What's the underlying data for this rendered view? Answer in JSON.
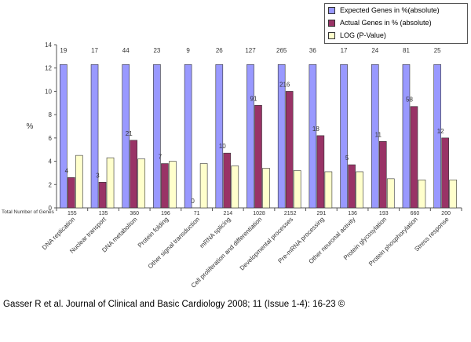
{
  "chart_data": {
    "type": "bar",
    "categories": [
      "DNA replication",
      "Nuclear transport",
      "DNA metabolism",
      "Protein folding",
      "Other signal transduction",
      "mRNA splicing",
      "Cell proliferation and differentiation",
      "Developmental processes",
      "Pre-mRNA processing",
      "Other neuronal activity",
      "Protein glycosylation",
      "Protein phosphorylation",
      "Stress response"
    ],
    "series": [
      {
        "name": "Expected Genes in %(absolute)",
        "color": "#9999ff",
        "values": [
          12.3,
          12.3,
          12.3,
          12.3,
          12.3,
          12.3,
          12.3,
          12.3,
          12.3,
          12.3,
          12.3,
          12.3,
          12.3
        ],
        "labels": [
          "19",
          "17",
          "44",
          "23",
          "9",
          "26",
          "127",
          "265",
          "36",
          "17",
          "24",
          "81",
          "25"
        ]
      },
      {
        "name": "Actual Genes in % (absolute)",
        "color": "#993366",
        "values": [
          2.6,
          2.2,
          5.8,
          3.8,
          0,
          4.7,
          8.8,
          10.0,
          6.2,
          3.7,
          5.7,
          8.7,
          6.0
        ],
        "labels": [
          "4",
          "3",
          "21",
          "7",
          "0",
          "10",
          "91",
          "216",
          "18",
          "5",
          "11",
          "58",
          "12"
        ]
      },
      {
        "name": "LOG (P-Value)",
        "color": "#ffffcc",
        "values": [
          4.5,
          4.3,
          4.2,
          4.0,
          3.8,
          3.6,
          3.4,
          3.2,
          3.1,
          3.1,
          2.5,
          2.4,
          2.4
        ]
      }
    ],
    "total_genes_label": "Total Number of Genes",
    "total_genes": [
      "155",
      "135",
      "360",
      "196",
      "71",
      "214",
      "1028",
      "2152",
      "291",
      "136",
      "193",
      "660",
      "200"
    ],
    "ylabel": "%",
    "ylim": [
      0,
      14
    ],
    "yticks": [
      0,
      2,
      4,
      6,
      8,
      10,
      12,
      14
    ],
    "grid": false,
    "legend_position": "top-right"
  },
  "citation": "Gasser R et al. Journal of Clinical and Basic Cardiology 2008; 11 (Issue 1-4): 16-23 ©"
}
